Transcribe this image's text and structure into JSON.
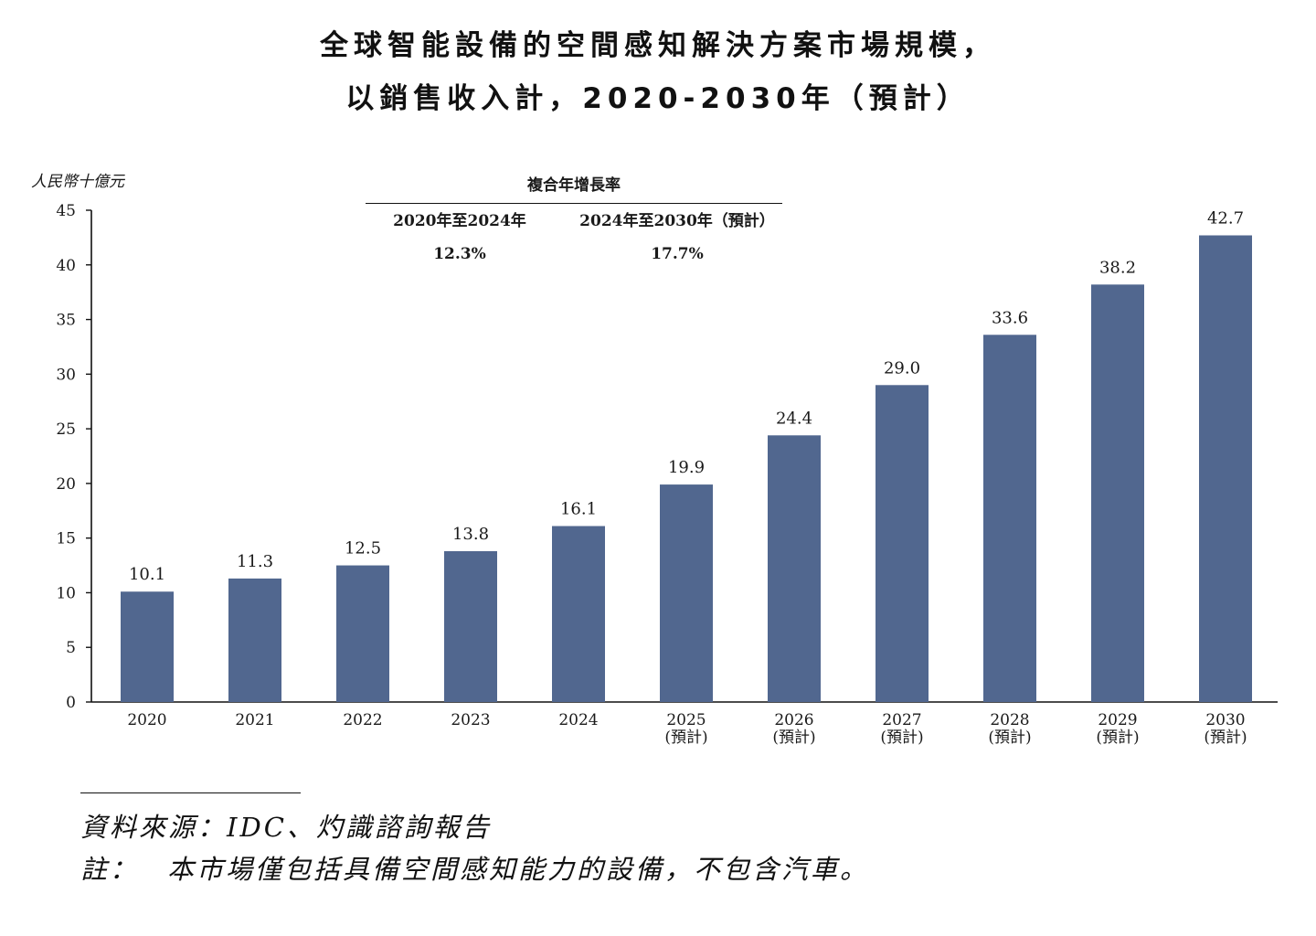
{
  "title_line1": "全球智能設備的空間感知解決方案市場規模，",
  "title_line2": "以銷售收入計，2020-2030年（預計）",
  "chart_data": {
    "type": "bar",
    "title": "全球智能設備的空間感知解決方案市場規模，以銷售收入計，2020-2030年（預計）",
    "ylabel": "人民幣十億元",
    "xlabel": "",
    "ylim": [
      0,
      45
    ],
    "yticks": [
      0,
      5,
      10,
      15,
      20,
      25,
      30,
      35,
      40,
      45
    ],
    "grid": false,
    "categories": [
      {
        "year": "2020",
        "sub": ""
      },
      {
        "year": "2021",
        "sub": ""
      },
      {
        "year": "2022",
        "sub": ""
      },
      {
        "year": "2023",
        "sub": ""
      },
      {
        "year": "2024",
        "sub": ""
      },
      {
        "year": "2025",
        "sub": "(預計)"
      },
      {
        "year": "2026",
        "sub": "(預計)"
      },
      {
        "year": "2027",
        "sub": "(預計)"
      },
      {
        "year": "2028",
        "sub": "(預計)"
      },
      {
        "year": "2029",
        "sub": "(預計)"
      },
      {
        "year": "2030",
        "sub": "(預計)"
      }
    ],
    "values": [
      10.1,
      11.3,
      12.5,
      13.8,
      16.1,
      19.9,
      24.4,
      29.0,
      33.6,
      38.2,
      42.7
    ],
    "value_labels": [
      "10.1",
      "11.3",
      "12.5",
      "13.8",
      "16.1",
      "19.9",
      "24.4",
      "29.0",
      "33.6",
      "38.2",
      "42.7"
    ],
    "bar_color": "#51678f"
  },
  "cagr": {
    "header": "複合年增長率",
    "periods": [
      {
        "period": "2020年至2024年",
        "rate": "12.3%"
      },
      {
        "period": "2024年至2030年（預計）",
        "rate": "17.7%"
      }
    ]
  },
  "footer": {
    "source": "資料來源：IDC、灼識諮詢報告",
    "note_label": "註：",
    "note": "本市場僅包括具備空間感知能力的設備，不包含汽車。"
  }
}
